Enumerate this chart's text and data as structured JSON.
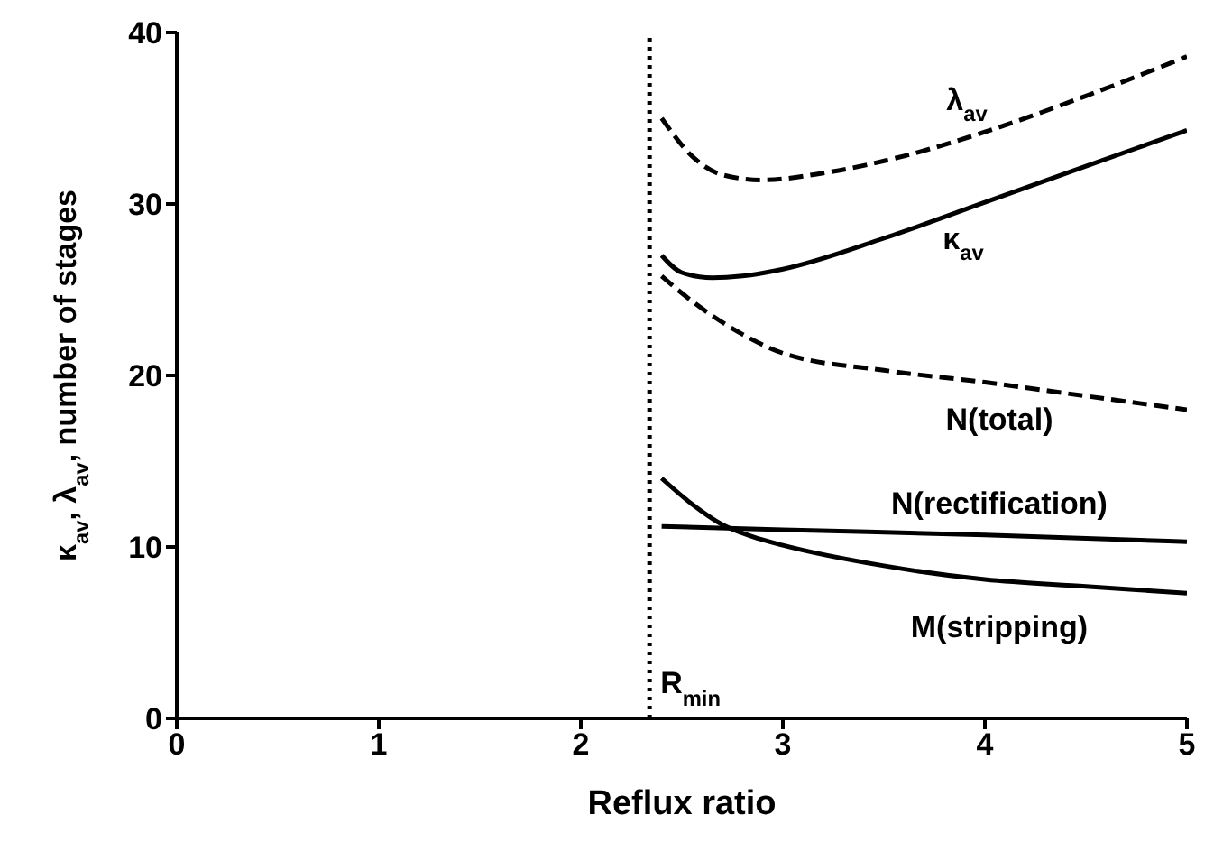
{
  "chart_data": {
    "type": "line",
    "xlabel": "Reflux ratio",
    "ylabel": "κ$_{av}$, λ$_{av}$, number of stages",
    "xlim": [
      0,
      5
    ],
    "ylim": [
      0,
      40
    ],
    "xticks": [
      0,
      1,
      2,
      3,
      4,
      5
    ],
    "yticks": [
      0,
      10,
      20,
      30,
      40
    ],
    "grid": false,
    "marker": "none",
    "series": [
      {
        "name": "λ$_{av}$",
        "color": "#000000",
        "line_style": "dashed",
        "x": [
          2.4,
          2.55,
          2.7,
          2.9,
          3.2,
          3.6,
          4.0,
          4.5,
          5.0
        ],
        "values": [
          35.0,
          32.8,
          31.7,
          31.4,
          31.8,
          32.8,
          34.2,
          36.3,
          38.6
        ]
      },
      {
        "name": "κ$_{av}$",
        "color": "#000000",
        "line_style": "solid",
        "x": [
          2.4,
          2.5,
          2.65,
          2.8,
          3.0,
          3.5,
          4.0,
          4.5,
          5.0
        ],
        "values": [
          27.0,
          26.0,
          25.7,
          25.8,
          26.2,
          28.0,
          30.1,
          32.2,
          34.3
        ]
      },
      {
        "name": "N(total)",
        "color": "#000000",
        "line_style": "dashed",
        "x": [
          2.4,
          2.5,
          2.6,
          2.8,
          3.0,
          3.5,
          4.0,
          4.5,
          5.0
        ],
        "values": [
          25.8,
          24.8,
          23.9,
          22.4,
          21.3,
          20.3,
          19.6,
          18.8,
          18.0
        ]
      },
      {
        "name": "N(rectification)",
        "color": "#000000",
        "line_style": "solid",
        "x": [
          2.4,
          3.0,
          4.0,
          5.0
        ],
        "values": [
          11.2,
          11.0,
          10.7,
          10.3
        ]
      },
      {
        "name": "M(stripping)",
        "color": "#000000",
        "line_style": "solid",
        "x": [
          2.4,
          2.55,
          2.7,
          2.85,
          3.0,
          3.5,
          4.0,
          4.5,
          5.0
        ],
        "values": [
          14.0,
          12.5,
          11.3,
          10.6,
          10.1,
          8.9,
          8.1,
          7.7,
          7.3
        ]
      }
    ],
    "ref_lines": [
      {
        "axis": "x",
        "value": 2.34,
        "label": "R$_{min}$",
        "line_style": "dotted",
        "color": "#000000"
      }
    ]
  }
}
